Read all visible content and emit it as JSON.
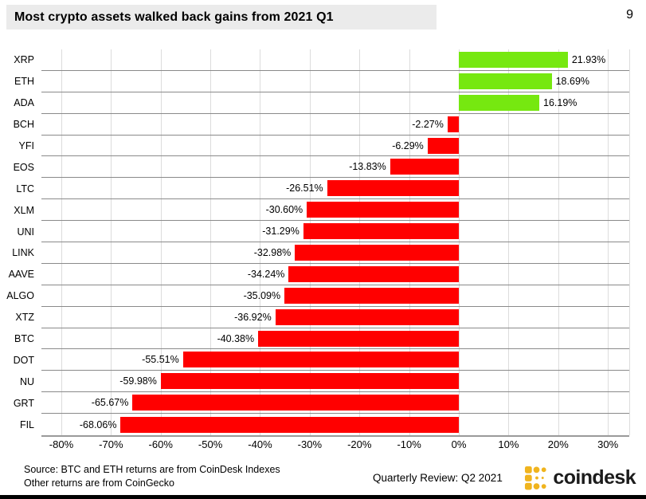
{
  "page": {
    "number": "9"
  },
  "header": {
    "title": "Most crypto assets walked back gains from 2021 Q1",
    "title_bg": "#ebebeb"
  },
  "chart_data": {
    "type": "bar",
    "orientation": "horizontal",
    "title": "Most crypto assets walked back gains from 2021 Q1",
    "categories": [
      "XRP",
      "ETH",
      "ADA",
      "BCH",
      "YFI",
      "EOS",
      "LTC",
      "XLM",
      "UNI",
      "LINK",
      "AAVE",
      "ALGO",
      "XTZ",
      "BTC",
      "DOT",
      "NU",
      "GRT",
      "FIL"
    ],
    "values": [
      21.93,
      18.69,
      16.19,
      -2.27,
      -6.29,
      -13.83,
      -26.51,
      -30.6,
      -31.29,
      -32.98,
      -34.24,
      -35.09,
      -36.92,
      -40.38,
      -55.51,
      -59.98,
      -65.67,
      -68.06
    ],
    "value_labels": [
      "21.93%",
      "18.69%",
      "16.19%",
      "-2.27%",
      "-6.29%",
      "-13.83%",
      "-26.51%",
      "-30.60%",
      "-31.29%",
      "-32.98%",
      "-34.24%",
      "-35.09%",
      "-36.92%",
      "-40.38%",
      "-55.51%",
      "-59.98%",
      "-65.67%",
      "-68.06%"
    ],
    "xlim": [
      -84,
      34.3
    ],
    "ticks": [
      -80,
      -70,
      -60,
      -50,
      -40,
      -30,
      -20,
      -10,
      0,
      10,
      20,
      30
    ],
    "tick_labels": [
      "-80%",
      "-70%",
      "-60%",
      "-50%",
      "-40%",
      "-30%",
      "-20%",
      "-10%",
      "0%",
      "10%",
      "20%",
      "30%"
    ],
    "grid": true,
    "legend": false,
    "positive_color": "#76E810",
    "negative_color": "#FF0000"
  },
  "footer": {
    "source_line1": "Source: BTC and ETH returns are from CoinDesk Indexes",
    "source_line2": "Other returns are from CoinGecko",
    "review_label": "Quarterly Review: Q2 2021",
    "logo_text": "coindesk",
    "logo_color": "#F0B41E"
  }
}
